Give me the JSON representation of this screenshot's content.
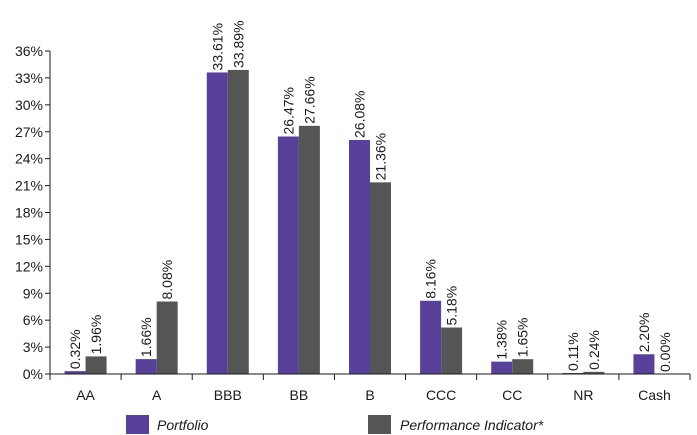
{
  "chart_data": {
    "type": "bar",
    "categories": [
      "AA",
      "A",
      "BBB",
      "BB",
      "B",
      "CCC",
      "CC",
      "NR",
      "Cash"
    ],
    "series": [
      {
        "name": "Portfolio",
        "color": "#58419b",
        "values": [
          0.32,
          1.66,
          33.61,
          26.47,
          26.08,
          8.16,
          1.38,
          0.11,
          2.2
        ],
        "labels": [
          "0.32%",
          "1.66%",
          "33.61%",
          "26.47%",
          "26.08%",
          "8.16%",
          "1.38%",
          "0.11%",
          "2.20%"
        ]
      },
      {
        "name": "Performance Indicator*",
        "color": "#555555",
        "values": [
          1.96,
          8.08,
          33.89,
          27.66,
          21.36,
          5.18,
          1.65,
          0.24,
          0.0
        ],
        "labels": [
          "1.96%",
          "8.08%",
          "33.89%",
          "27.66%",
          "21.36%",
          "5.18%",
          "1.65%",
          "0.24%",
          "0.00%"
        ]
      }
    ],
    "yticks": [
      "0%",
      "3%",
      "6%",
      "9%",
      "12%",
      "15%",
      "18%",
      "21%",
      "24%",
      "27%",
      "30%",
      "33%",
      "36%"
    ],
    "ylim": [
      0,
      36
    ],
    "grid": false,
    "legend": "bottom"
  }
}
